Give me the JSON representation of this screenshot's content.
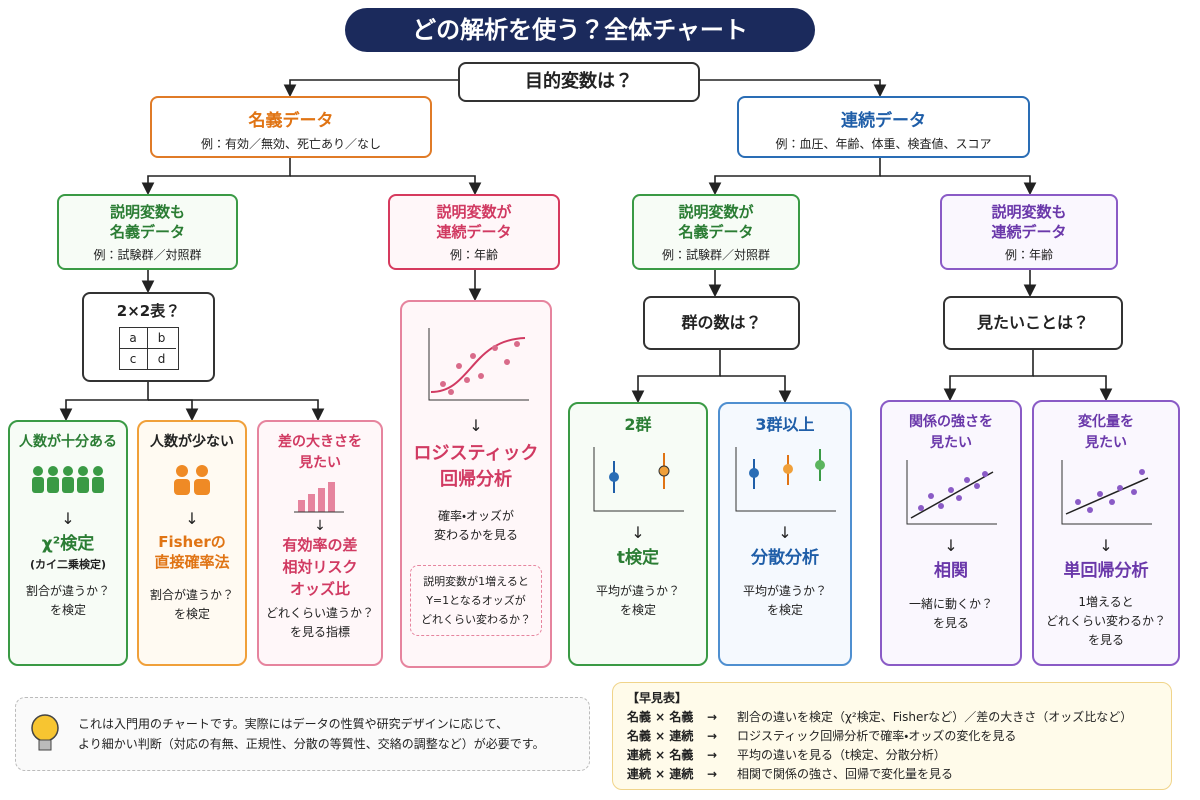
{
  "title": "どの解析を使う？全体チャート",
  "root": "目的変数は？",
  "branches": [
    {
      "label": "名義データ",
      "example": "例：有効／無効、死亡あり／なし"
    },
    {
      "label": "連続データ",
      "example": "例：血圧、年齢、体重、検査値、スコア"
    }
  ],
  "explanatory": [
    {
      "label": "説明変数も\n名義データ",
      "example": "例：試験群／対照群"
    },
    {
      "label": "説明変数が\n連続データ",
      "example": "例：年齢"
    },
    {
      "label": "説明変数が\n名義データ",
      "example": "例：試験群／対照群"
    },
    {
      "label": "説明変数も\n連続データ",
      "example": "例：年齢"
    }
  ],
  "questions": {
    "table_2x2": {
      "label": "2×2表？",
      "cells": [
        "a",
        "b",
        "c",
        "d"
      ]
    },
    "group_count": "群の数は？",
    "purpose": "見たいことは？"
  },
  "methods": [
    {
      "condition": "人数が十分ある",
      "method": "χ²検定",
      "method_note": "(カイ二乗検定)",
      "purpose": "割合が違うか？\nを検定"
    },
    {
      "condition": "人数が少ない",
      "method": "Fisherの\n直接確率法",
      "purpose": "割合が違うか？\nを検定"
    },
    {
      "condition": "差の大きさを\n見たい",
      "method": "有効率の差\n相対リスク\nオッズ比",
      "purpose": "どれくらい違うか？\nを見る指標"
    },
    {
      "method": "ロジスティック\n回帰分析",
      "purpose": "確率・オッズが\n変わるかを見る",
      "note": "説明変数が1増えると\nY=1となるオッズが\nどれくらい変わるか？"
    },
    {
      "condition": "2群",
      "method": "t検定",
      "purpose": "平均が違うか？\nを検定"
    },
    {
      "condition": "3群以上",
      "method": "分散分析",
      "purpose": "平均が違うか？\nを検定"
    },
    {
      "condition": "関係の強さを\n見たい",
      "method": "相関",
      "purpose": "一緒に動くか？\nを見る"
    },
    {
      "condition": "変化量を\n見たい",
      "method": "単回帰分析",
      "purpose": "1増えると\nどれくらい変わるか？\nを見る"
    }
  ],
  "note": "これは入門用のチャートです。実際にはデータの性質や研究デザインに応じて、\nより細かい判断（対応の有無、正規性、分散の等質性、交絡の調整など）が必要です。",
  "quick_table": {
    "title": "【早見表】",
    "rows": [
      [
        "名義 × 名義",
        "→",
        "割合の違いを検定（χ²検定、Fisherなど）／差の大きさ（オッズ比など）"
      ],
      [
        "名義 × 連続",
        "→",
        "ロジスティック回帰分析で確率・オッズの変化を見る"
      ],
      [
        "連続 × 名義",
        "→",
        "平均の違いを見る（t検定、分散分析）"
      ],
      [
        "連続 × 連続",
        "→",
        "相関で関係の強さ、回帰で変化量を見る"
      ]
    ]
  }
}
